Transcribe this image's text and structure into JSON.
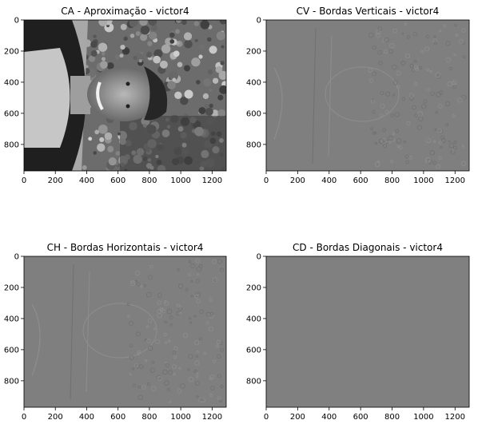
{
  "figure": {
    "background": "#ffffff"
  },
  "chart_data": [
    {
      "type": "heatmap",
      "title": "CA - Aproximação - victor4",
      "xlim": [
        0,
        1290
      ],
      "ylim": [
        970,
        0
      ],
      "xticks": [
        0,
        200,
        400,
        600,
        800,
        1000,
        1200
      ],
      "yticks": [
        0,
        200,
        400,
        600,
        800
      ],
      "colormap": "gray",
      "content": "grayscale photo, approximation coefficients"
    },
    {
      "type": "heatmap",
      "title": "CV - Bordas Verticais - victor4",
      "xlim": [
        0,
        1290
      ],
      "ylim": [
        970,
        0
      ],
      "xticks": [
        0,
        200,
        400,
        600,
        800,
        1000,
        1200
      ],
      "yticks": [
        0,
        200,
        400,
        600,
        800
      ],
      "colormap": "gray",
      "content": "vertical detail coefficients"
    },
    {
      "type": "heatmap",
      "title": "CH - Bordas Horizontais - victor4",
      "xlim": [
        0,
        1290
      ],
      "ylim": [
        970,
        0
      ],
      "xticks": [
        0,
        200,
        400,
        600,
        800,
        1000,
        1200
      ],
      "yticks": [
        0,
        200,
        400,
        600,
        800
      ],
      "colormap": "gray",
      "content": "horizontal detail coefficients"
    },
    {
      "type": "heatmap",
      "title": "CD - Bordas Diagonais - victor4",
      "xlim": [
        0,
        1290
      ],
      "ylim": [
        970,
        0
      ],
      "xticks": [
        0,
        200,
        400,
        600,
        800,
        1000,
        1200
      ],
      "yticks": [
        0,
        200,
        400,
        600,
        800
      ],
      "colormap": "gray",
      "content": "diagonal detail coefficients"
    }
  ]
}
